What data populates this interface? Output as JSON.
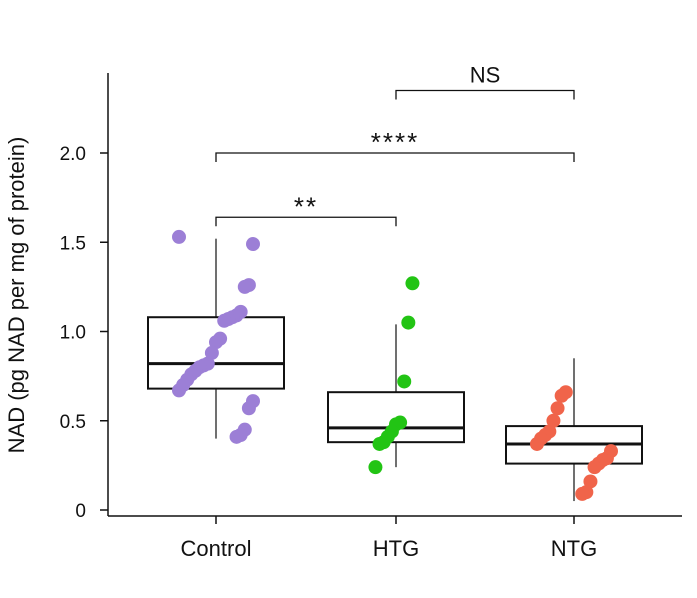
{
  "chart_data": {
    "type": "box",
    "ylabel": "NAD (pg NAD per mg of protein)",
    "ylim": [
      0,
      2.4
    ],
    "yticks": [
      0,
      0.5,
      1.0,
      1.5,
      2.0
    ],
    "ytick_labels": [
      "0",
      "0.5",
      "1.0",
      "1.5",
      "2.0"
    ],
    "categories": [
      "Control",
      "HTG",
      "NTG"
    ],
    "groups": [
      {
        "name": "Control",
        "color": "#9c7fd6",
        "box": {
          "whisker_low": 0.4,
          "q1": 0.68,
          "median": 0.82,
          "q3": 1.08,
          "whisker_high": 1.52
        },
        "points": [
          1.53,
          1.49,
          1.26,
          1.25,
          1.11,
          1.09,
          1.08,
          1.07,
          1.06,
          0.96,
          0.94,
          0.88,
          0.82,
          0.81,
          0.8,
          0.78,
          0.76,
          0.73,
          0.7,
          0.67,
          0.61,
          0.57,
          0.45,
          0.42,
          0.41
        ]
      },
      {
        "name": "HTG",
        "color": "#22c414",
        "box": {
          "whisker_low": 0.24,
          "q1": 0.38,
          "median": 0.46,
          "q3": 0.66,
          "whisker_high": 1.04
        },
        "points": [
          1.27,
          1.05,
          0.72,
          0.49,
          0.48,
          0.44,
          0.41,
          0.38,
          0.37,
          0.24
        ]
      },
      {
        "name": "NTG",
        "color": "#f0644a",
        "box": {
          "whisker_low": 0.05,
          "q1": 0.26,
          "median": 0.37,
          "q3": 0.47,
          "whisker_high": 0.85
        },
        "points": [
          0.66,
          0.64,
          0.57,
          0.5,
          0.44,
          0.42,
          0.4,
          0.37,
          0.33,
          0.29,
          0.28,
          0.26,
          0.24,
          0.16,
          0.1,
          0.09
        ]
      }
    ],
    "significance": [
      {
        "from": "Control",
        "to": "HTG",
        "label": "**",
        "y": 1.64
      },
      {
        "from": "Control",
        "to": "NTG",
        "label": "****",
        "y": 2.0
      },
      {
        "from": "HTG",
        "to": "NTG",
        "label": "NS",
        "y": 2.35
      }
    ]
  }
}
